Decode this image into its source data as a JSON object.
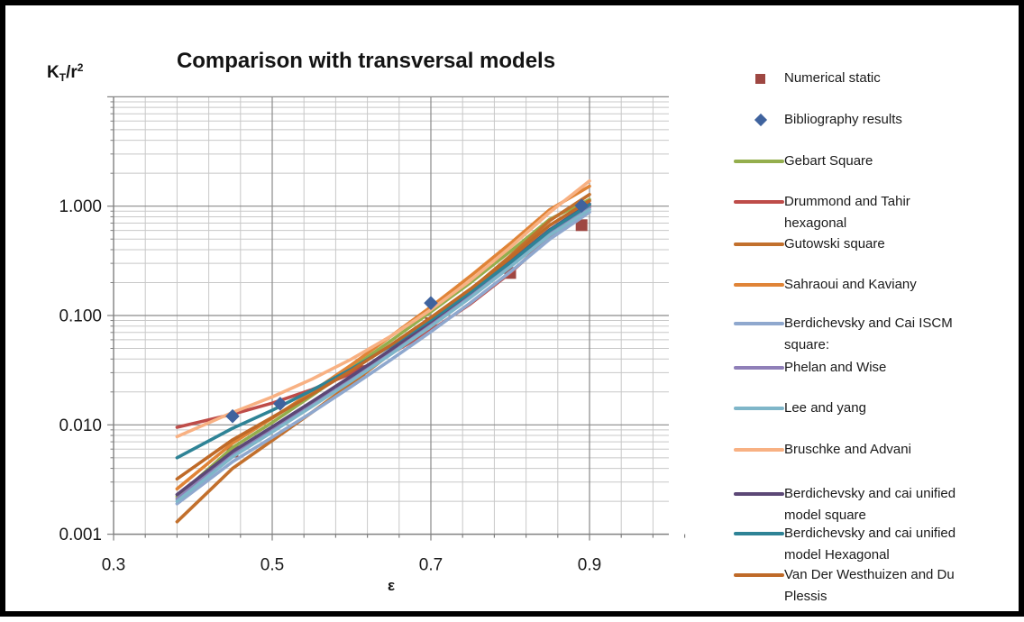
{
  "chart": {
    "title": "Comparison with transversal models",
    "y_axis_title": {
      "base": "K",
      "sub": "T",
      "rest": "/r",
      "sup": "2"
    },
    "x_axis_title": "ε"
  },
  "colors": {
    "grid_minor": "#C8C8C8",
    "grid_major": "#8A8A8A",
    "axis_line": "#808080",
    "tick_text": "#1a1a1a"
  },
  "chart_data": {
    "type": "line",
    "title": "Comparison with transversal models",
    "xlabel": "ε",
    "ylabel": "KT/r2",
    "x_axis": {
      "scale": "linear",
      "min": 0.3,
      "max": 1.0,
      "minor_unit": 0.04,
      "major_ticks": [
        {
          "value": 0.3,
          "label": "0.3"
        },
        {
          "value": 0.5,
          "label": "0.5"
        },
        {
          "value": 0.7,
          "label": "0.7"
        },
        {
          "value": 0.9,
          "label": "0.9"
        }
      ]
    },
    "y_axis": {
      "scale": "log",
      "min": 0.001,
      "max": 10,
      "grid": "major+minor",
      "major_ticks": [
        {
          "value": 1.0,
          "label": "1.000"
        },
        {
          "value": 0.1,
          "label": "0.100"
        },
        {
          "value": 0.01,
          "label": "0.010"
        },
        {
          "value": 0.001,
          "label": "0.001"
        }
      ]
    },
    "legend_position": "right",
    "legend_item_y_centers": [
      81,
      127,
      173,
      218,
      265,
      310,
      353,
      402,
      447,
      493,
      542,
      586,
      632
    ],
    "series": [
      {
        "name": "Numerical static",
        "legend_lines": [
          "Numerical static"
        ],
        "type": "scatter",
        "marker": "square",
        "color": "#9E4742",
        "z": 0,
        "x": [
          0.45,
          0.61,
          0.7,
          0.8,
          0.89
        ],
        "y": [
          0.0057,
          0.031,
          0.085,
          0.245,
          0.67
        ]
      },
      {
        "name": "Bibliography results",
        "legend_lines": [
          "Bibliography results"
        ],
        "type": "scatter",
        "marker": "diamond",
        "color": "#3F639E",
        "z": 2,
        "x": [
          0.45,
          0.51,
          0.7,
          0.89
        ],
        "y": [
          0.012,
          0.0156,
          0.13,
          1.01
        ]
      },
      {
        "name": "Gebart Square",
        "legend_lines": [
          "Gebart Square"
        ],
        "type": "line",
        "color": "#94AE4D",
        "z": 1,
        "x": [
          0.38,
          0.45,
          0.5,
          0.55,
          0.6,
          0.65,
          0.7,
          0.75,
          0.8,
          0.85,
          0.9
        ],
        "y": [
          0.0022,
          0.0062,
          0.0105,
          0.0185,
          0.033,
          0.059,
          0.108,
          0.2,
          0.385,
          0.76,
          1.15
        ]
      },
      {
        "name": "Drummond and Tahir hexagonal",
        "legend_lines": [
          "Drummond and Tahir",
          "hexagonal"
        ],
        "type": "line",
        "color": "#BE4C49",
        "z": 1,
        "x": [
          0.38,
          0.45,
          0.5,
          0.55,
          0.6,
          0.65,
          0.7,
          0.75,
          0.8,
          0.85,
          0.9
        ],
        "y": [
          0.0095,
          0.0125,
          0.0158,
          0.021,
          0.0295,
          0.045,
          0.073,
          0.128,
          0.245,
          0.52,
          1.0
        ]
      },
      {
        "name": "Gutowski square",
        "legend_lines": [
          "Gutowski square"
        ],
        "type": "line",
        "color": "#C2702D",
        "z": 1,
        "x": [
          0.38,
          0.45,
          0.5,
          0.55,
          0.6,
          0.65,
          0.7,
          0.75,
          0.8,
          0.85,
          0.9
        ],
        "y": [
          0.0013,
          0.004,
          0.0072,
          0.013,
          0.024,
          0.045,
          0.087,
          0.172,
          0.35,
          0.74,
          1.28
        ]
      },
      {
        "name": "Sahraoui and Kaviany",
        "legend_lines": [
          "Sahraoui and Kaviany"
        ],
        "type": "line",
        "color": "#E08437",
        "z": 1,
        "x": [
          0.38,
          0.45,
          0.5,
          0.55,
          0.6,
          0.65,
          0.7,
          0.75,
          0.8,
          0.85,
          0.9
        ],
        "y": [
          0.0026,
          0.0068,
          0.0115,
          0.02,
          0.0355,
          0.065,
          0.12,
          0.23,
          0.455,
          0.93,
          1.52
        ]
      },
      {
        "name": "Berdichevsky and Cai ISCM square:",
        "legend_lines": [
          "Berdichevsky and Cai ISCM",
          "square:"
        ],
        "type": "line",
        "color": "#8FA8CE",
        "z": 1,
        "x": [
          0.38,
          0.45,
          0.5,
          0.55,
          0.6,
          0.65,
          0.7,
          0.75,
          0.8,
          0.85,
          0.9
        ],
        "y": [
          0.0019,
          0.0046,
          0.0077,
          0.013,
          0.0225,
          0.0395,
          0.071,
          0.131,
          0.25,
          0.5,
          0.88
        ]
      },
      {
        "name": "Phelan and Wise",
        "legend_lines": [
          "Phelan and Wise"
        ],
        "type": "line",
        "color": "#8F7FB8",
        "z": 1,
        "x": [
          0.38,
          0.45,
          0.5,
          0.55,
          0.6,
          0.65,
          0.7,
          0.75,
          0.8,
          0.85,
          0.9
        ],
        "y": [
          0.0021,
          0.0053,
          0.0089,
          0.0152,
          0.0262,
          0.046,
          0.082,
          0.15,
          0.285,
          0.56,
          0.97
        ]
      },
      {
        "name": "Lee and yang",
        "legend_lines": [
          "Lee and yang"
        ],
        "type": "line",
        "color": "#7FB6C9",
        "z": 1,
        "x": [
          0.38,
          0.45,
          0.5,
          0.55,
          0.6,
          0.65,
          0.7,
          0.75,
          0.8,
          0.85,
          0.9
        ],
        "y": [
          0.002,
          0.0051,
          0.0086,
          0.0147,
          0.0253,
          0.0445,
          0.0795,
          0.146,
          0.278,
          0.545,
          0.93
        ]
      },
      {
        "name": "Bruschke and Advani",
        "legend_lines": [
          "Bruschke and Advani"
        ],
        "type": "line",
        "color": "#F8B183",
        "z": 1,
        "x": [
          0.38,
          0.45,
          0.5,
          0.55,
          0.6,
          0.65,
          0.7,
          0.75,
          0.8,
          0.85,
          0.9
        ],
        "y": [
          0.0078,
          0.013,
          0.018,
          0.0262,
          0.04,
          0.065,
          0.113,
          0.21,
          0.42,
          0.88,
          1.7
        ]
      },
      {
        "name": "Berdichevsky and cai unified model square",
        "legend_lines": [
          "Berdichevsky and cai unified",
          "model square"
        ],
        "type": "line",
        "color": "#5C4876",
        "z": 1,
        "x": [
          0.38,
          0.45,
          0.5,
          0.55,
          0.6,
          0.65,
          0.7,
          0.75,
          0.8,
          0.85,
          0.9
        ],
        "y": [
          0.0023,
          0.0057,
          0.0096,
          0.0163,
          0.028,
          0.049,
          0.088,
          0.162,
          0.31,
          0.61,
          1.05
        ]
      },
      {
        "name": "Berdichevsky and cai unified model Hexagonal",
        "legend_lines": [
          "Berdichevsky and cai unified",
          "model Hexagonal"
        ],
        "type": "line",
        "color": "#2E8396",
        "z": 1,
        "x": [
          0.38,
          0.45,
          0.5,
          0.55,
          0.6,
          0.65,
          0.7,
          0.75,
          0.8,
          0.85,
          0.9
        ],
        "y": [
          0.005,
          0.0093,
          0.0136,
          0.0207,
          0.0325,
          0.053,
          0.091,
          0.163,
          0.305,
          0.6,
          1.03
        ]
      },
      {
        "name": "Van Der Westhuizen and Du Plessis",
        "legend_lines": [
          "Van Der Westhuizen  and Du",
          "Plessis"
        ],
        "type": "line",
        "color": "#BF6A28",
        "z": 1,
        "x": [
          0.38,
          0.45,
          0.5,
          0.55,
          0.6,
          0.65,
          0.7,
          0.75,
          0.8,
          0.85,
          0.9
        ],
        "y": [
          0.0032,
          0.0073,
          0.0117,
          0.019,
          0.0315,
          0.054,
          0.096,
          0.175,
          0.335,
          0.67,
          1.12
        ]
      }
    ]
  }
}
